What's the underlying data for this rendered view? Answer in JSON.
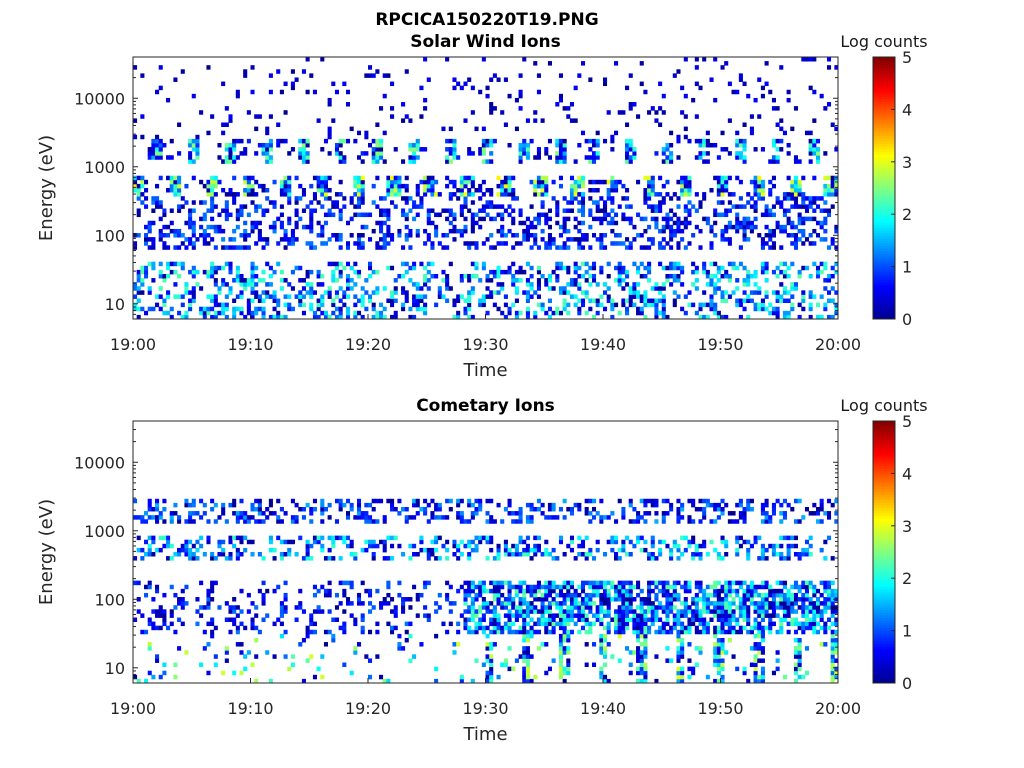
{
  "figure_title": "RPCICA150220T19.PNG",
  "colormap": [
    "#00008f",
    "#0000ff",
    "#0080ff",
    "#00ffff",
    "#80ff80",
    "#ffff00",
    "#ff8000",
    "#ff0000",
    "#800000"
  ],
  "chart_data": [
    {
      "type": "heatmap",
      "title": "Solar Wind Ions",
      "xlabel": "Time",
      "ylabel": "Energy (eV)",
      "x_ticks": [
        "19:00",
        "19:10",
        "19:20",
        "19:30",
        "19:40",
        "19:50",
        "20:00"
      ],
      "x_range_minutes": [
        0,
        60
      ],
      "y_ticks": [
        "10",
        "100",
        "1000",
        "10000"
      ],
      "y_scale": "log",
      "y_range": [
        6,
        40000
      ],
      "colorbar": {
        "title": "Log counts",
        "ticks": [
          "0",
          "1",
          "2",
          "3",
          "4",
          "5"
        ],
        "range": [
          0,
          5
        ]
      },
      "bands": [
        {
          "energy_range": [
            350,
            700
          ],
          "level_max": 3.2,
          "note": "periodic peaks every ~3 min"
        },
        {
          "energy_range": [
            1100,
            2500
          ],
          "level_max": 2.6
        },
        {
          "energy_range": [
            60,
            350
          ],
          "level_max": 1.3
        },
        {
          "energy_range": [
            6,
            40
          ],
          "level_max": 2.3
        },
        {
          "energy_range": [
            2500,
            40000
          ],
          "level_max": 0.6
        }
      ]
    },
    {
      "type": "heatmap",
      "title": "Cometary Ions",
      "xlabel": "Time",
      "ylabel": "Energy (eV)",
      "x_ticks": [
        "19:00",
        "19:10",
        "19:20",
        "19:30",
        "19:40",
        "19:50",
        "20:00"
      ],
      "x_range_minutes": [
        0,
        60
      ],
      "y_ticks": [
        "10",
        "100",
        "1000",
        "10000"
      ],
      "y_scale": "log",
      "y_range": [
        6,
        40000
      ],
      "colorbar": {
        "title": "Log counts",
        "ticks": [
          "0",
          "1",
          "2",
          "3",
          "4",
          "5"
        ],
        "range": [
          0,
          5
        ]
      },
      "bands": [
        {
          "energy_range": [
            350,
            800
          ],
          "level_max": 2.2
        },
        {
          "energy_range": [
            1300,
            3000
          ],
          "level_max": 1.5
        },
        {
          "energy_range": [
            30,
            200
          ],
          "level_max": 2.4,
          "note": "enhanced after 19:30"
        },
        {
          "energy_range": [
            6,
            30
          ],
          "level_max": 3.0
        }
      ]
    }
  ]
}
